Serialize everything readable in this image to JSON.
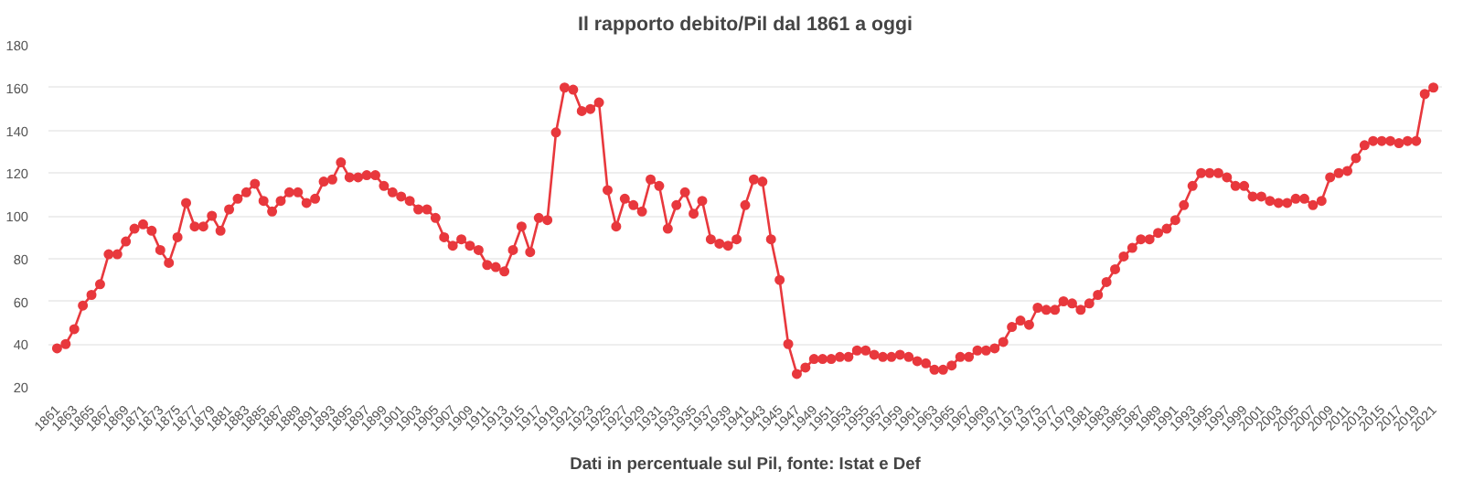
{
  "chart_data": {
    "type": "line",
    "title": "Il rapporto debito/Pil dal 1861 a oggi",
    "annotations": [
      "Dati in percentuale sul Pil, fonte: Istat e Def"
    ],
    "x": [
      1861,
      1862,
      1863,
      1864,
      1865,
      1866,
      1867,
      1868,
      1869,
      1870,
      1871,
      1872,
      1873,
      1874,
      1875,
      1876,
      1877,
      1878,
      1879,
      1880,
      1881,
      1882,
      1883,
      1884,
      1885,
      1886,
      1887,
      1888,
      1889,
      1890,
      1891,
      1892,
      1893,
      1894,
      1895,
      1896,
      1897,
      1898,
      1899,
      1900,
      1901,
      1902,
      1903,
      1904,
      1905,
      1906,
      1907,
      1908,
      1909,
      1910,
      1911,
      1912,
      1913,
      1914,
      1915,
      1916,
      1917,
      1918,
      1919,
      1920,
      1921,
      1922,
      1923,
      1924,
      1925,
      1926,
      1927,
      1928,
      1929,
      1930,
      1931,
      1932,
      1933,
      1934,
      1935,
      1936,
      1937,
      1938,
      1939,
      1940,
      1941,
      1942,
      1943,
      1944,
      1945,
      1946,
      1947,
      1948,
      1949,
      1950,
      1951,
      1952,
      1953,
      1954,
      1955,
      1956,
      1957,
      1958,
      1959,
      1960,
      1961,
      1962,
      1963,
      1964,
      1965,
      1966,
      1967,
      1968,
      1969,
      1970,
      1971,
      1972,
      1973,
      1974,
      1975,
      1976,
      1977,
      1978,
      1979,
      1980,
      1981,
      1982,
      1983,
      1984,
      1985,
      1986,
      1987,
      1988,
      1989,
      1990,
      1991,
      1992,
      1993,
      1994,
      1995,
      1996,
      1997,
      1998,
      1999,
      2000,
      2001,
      2002,
      2003,
      2004,
      2005,
      2006,
      2007,
      2008,
      2009,
      2010,
      2011,
      2012,
      2013,
      2014,
      2015,
      2016,
      2017,
      2018,
      2019,
      2020,
      2021
    ],
    "series": [
      {
        "color": "#e8383d",
        "values": [
          38,
          40,
          47,
          58,
          63,
          68,
          82,
          82,
          88,
          94,
          96,
          93,
          84,
          78,
          90,
          106,
          95,
          95,
          100,
          93,
          103,
          108,
          111,
          115,
          107,
          102,
          107,
          111,
          111,
          106,
          108,
          116,
          117,
          125,
          118,
          118,
          119,
          119,
          114,
          111,
          109,
          107,
          103,
          103,
          99,
          90,
          86,
          89,
          86,
          84,
          77,
          76,
          74,
          84,
          95,
          83,
          99,
          98,
          139,
          160,
          159,
          149,
          150,
          153,
          112,
          95,
          108,
          105,
          102,
          117,
          114,
          94,
          105,
          111,
          101,
          107,
          89,
          87,
          86,
          89,
          105,
          117,
          116,
          89,
          70,
          40,
          26,
          29,
          33,
          33,
          33,
          34,
          34,
          37,
          37,
          35,
          34,
          34,
          35,
          34,
          32,
          31,
          28,
          28,
          30,
          34,
          34,
          37,
          37,
          38,
          41,
          48,
          51,
          49,
          57,
          56,
          56,
          60,
          59,
          56,
          59,
          63,
          69,
          75,
          81,
          85,
          89,
          89,
          92,
          94,
          98,
          105,
          114,
          120,
          120,
          120,
          118,
          114,
          114,
          109,
          109,
          107,
          106,
          106,
          108,
          108,
          105,
          107,
          118,
          120,
          121,
          127,
          133,
          135,
          135,
          135,
          134,
          135,
          135,
          157,
          160
        ]
      }
    ],
    "xlim": [
      1860,
      2022
    ],
    "xticks": [
      1861,
      1863,
      1865,
      1867,
      1869,
      1871,
      1873,
      1875,
      1877,
      1879,
      1881,
      1883,
      1885,
      1887,
      1889,
      1891,
      1893,
      1895,
      1897,
      1899,
      1901,
      1903,
      1905,
      1907,
      1909,
      1911,
      1913,
      1915,
      1917,
      1919,
      1921,
      1923,
      1925,
      1927,
      1929,
      1931,
      1933,
      1935,
      1937,
      1939,
      1941,
      1943,
      1945,
      1947,
      1949,
      1951,
      1953,
      1955,
      1957,
      1959,
      1961,
      1963,
      1965,
      1967,
      1969,
      1971,
      1973,
      1975,
      1977,
      1979,
      1981,
      1983,
      1985,
      1987,
      1989,
      1991,
      1993,
      1995,
      1997,
      1999,
      2001,
      2003,
      2005,
      2007,
      2009,
      2011,
      2013,
      2015,
      2017,
      2019,
      2021
    ],
    "ylim": [
      20,
      180
    ],
    "yticks": [
      20,
      40,
      60,
      80,
      100,
      120,
      140,
      160,
      180
    ],
    "grid": "y",
    "marker": "circle",
    "line_style": "solid"
  }
}
